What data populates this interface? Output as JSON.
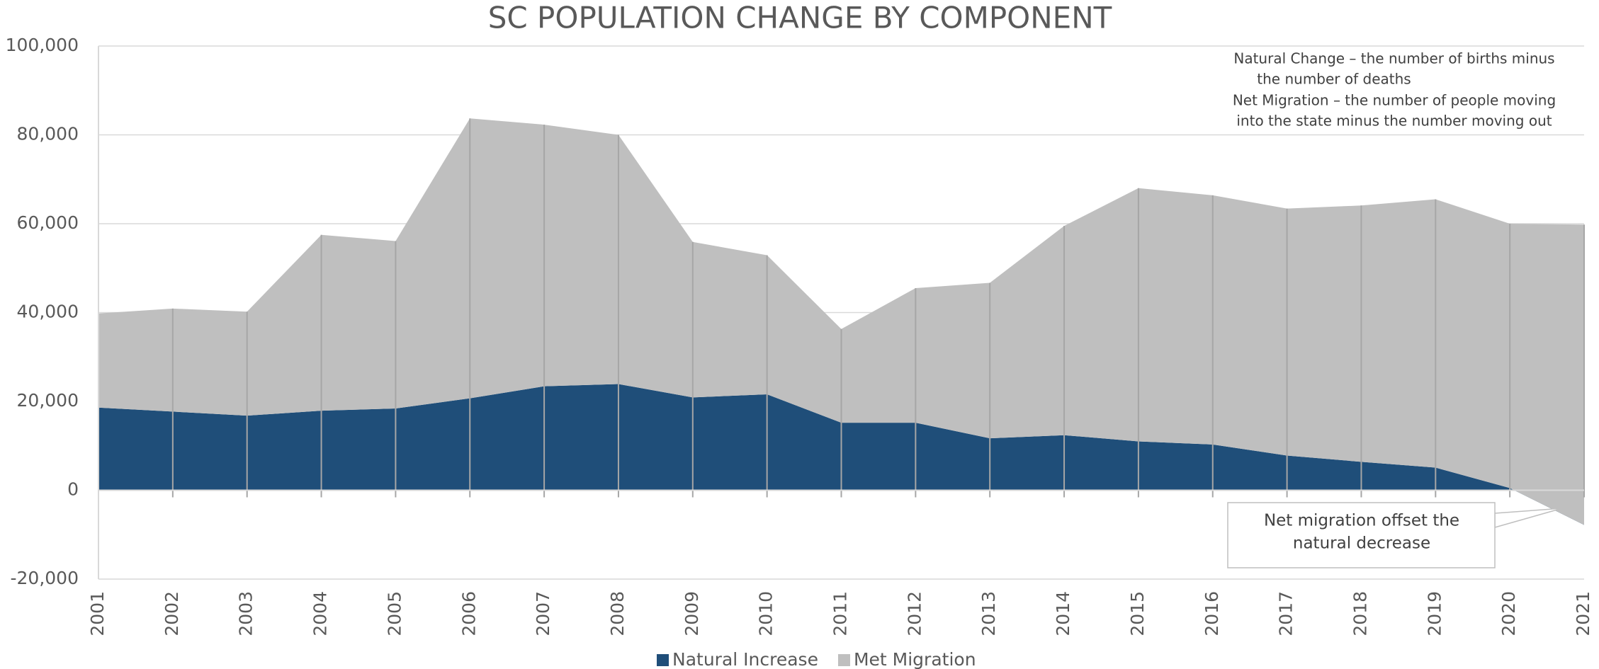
{
  "chart_data": {
    "type": "stacked-area",
    "title": "SC POPULATION CHANGE BY COMPONENT",
    "categories": [
      "2001",
      "2002",
      "2003",
      "2004",
      "2005",
      "2006",
      "2007",
      "2008",
      "2009",
      "2010",
      "2011",
      "2012",
      "2013",
      "2014",
      "2015",
      "2016",
      "2017",
      "2018",
      "2019",
      "2020",
      "2021"
    ],
    "series": [
      {
        "name": "Natural Increase",
        "color": "#1f4e79",
        "values": [
          18600,
          17700,
          16800,
          17900,
          18400,
          20700,
          23400,
          23900,
          20900,
          21600,
          15200,
          15200,
          11700,
          12400,
          11000,
          10300,
          7800,
          6400,
          5100,
          500,
          -7800
        ]
      },
      {
        "name": "Met Migration",
        "color": "#bfbfbf",
        "values": [
          21200,
          23200,
          23400,
          39600,
          37700,
          63000,
          58900,
          56100,
          35000,
          31300,
          21100,
          30300,
          35000,
          47100,
          57000,
          56100,
          55600,
          57700,
          60400,
          59500,
          67600
        ]
      }
    ],
    "ylim": [
      -20000,
      100000
    ],
    "yticks": [
      {
        "value": -20000,
        "label": "-20,000"
      },
      0,
      {
        "value": 20000,
        "label": "20,000"
      },
      {
        "value": 40000,
        "label": "40,000"
      },
      {
        "value": 60000,
        "label": "60,000"
      },
      {
        "value": 80000,
        "label": "80,000"
      },
      {
        "value": 100000,
        "label": "100,000"
      }
    ],
    "grid": true,
    "legend": "bottom",
    "annotations": {
      "definitions": [
        "Natural Change  – the number of births minus",
        "the number of deaths",
        "Net Migration – the number of people moving",
        "into the state minus the number moving out"
      ],
      "callout": [
        "Net migration offset the",
        "natural decrease"
      ]
    }
  }
}
